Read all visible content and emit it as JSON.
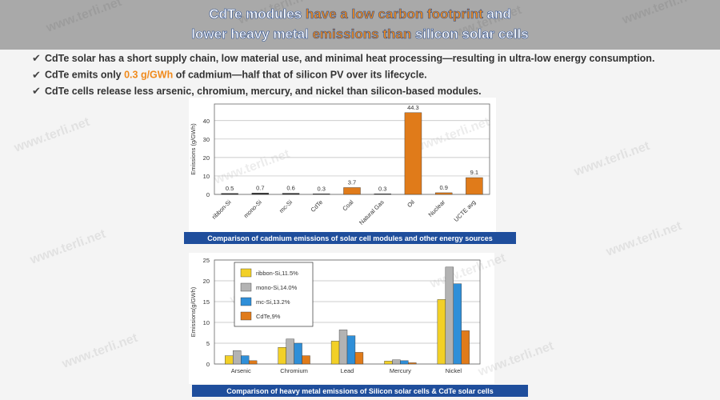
{
  "header": {
    "title_lines": [
      [
        {
          "text": "CdTe modules ",
          "highlight": false
        },
        {
          "text": "have a low carbon footprint",
          "highlight": true
        },
        {
          "text": " and",
          "highlight": false
        }
      ],
      [
        {
          "text": "lower heavy metal ",
          "highlight": false
        },
        {
          "text": "emissions than",
          "highlight": true
        },
        {
          "text": " silicon solar cells",
          "highlight": false
        }
      ]
    ]
  },
  "bullets": [
    [
      {
        "text": "CdTe solar has a short supply chain, low material use, and minimal heat processing—resulting in ultra-low energy consumption.",
        "highlight": false
      }
    ],
    [
      {
        "text": "CdTe emits only ",
        "highlight": false
      },
      {
        "text": "0.3 g/GWh",
        "highlight": true
      },
      {
        "text": " of cadmium—half that of silicon PV over its lifecycle.",
        "highlight": false
      }
    ],
    [
      {
        "text": "CdTe cells release less arsenic, chromium, mercury, and nickel than silicon-based modules.",
        "highlight": false
      }
    ]
  ],
  "watermark": "www.terli.net",
  "chart_data": [
    {
      "type": "bar",
      "caption": "Comparison of cadmium emissions of solar cell modules and other energy sources",
      "y_label": "Emissions (g/GWh)",
      "categories": [
        "ribbon-Si",
        "mono-Si",
        "mc-Si",
        "CdTe",
        "Coal",
        "Natural Gas",
        "Oil",
        "Nuclear",
        "UCTE avg"
      ],
      "values": [
        0.5,
        0.7,
        0.6,
        0.3,
        3.7,
        0.3,
        44.3,
        0.9,
        9.1
      ],
      "colors": [
        "#222222",
        "#222222",
        "#222222",
        "#222222",
        "#e07b1a",
        "#222222",
        "#e07b1a",
        "#e07b1a",
        "#e07b1a"
      ],
      "ylim": [
        0,
        49
      ],
      "yticks": [
        0,
        10,
        20,
        30,
        40
      ],
      "grid": true
    },
    {
      "type": "grouped_bar",
      "caption": "Comparison of heavy metal emissions of Silicon solar cells & CdTe solar cells",
      "y_label": "Emissions(g/GWh)",
      "categories": [
        "Arsenic",
        "Chromium",
        "Lead",
        "Mercury",
        "Nickel"
      ],
      "series": [
        {
          "name": "ribbon-Si,11.5%",
          "color": "#f2d027",
          "values": [
            2.0,
            4.0,
            5.5,
            0.7,
            15.5
          ]
        },
        {
          "name": "mono-Si,14.0%",
          "color": "#b3b3b3",
          "values": [
            3.2,
            6.0,
            8.2,
            1.0,
            23.3
          ]
        },
        {
          "name": "mc-Si,13.2%",
          "color": "#2f8fd8",
          "values": [
            2.0,
            5.0,
            6.8,
            0.8,
            19.3
          ]
        },
        {
          "name": "CdTe,9%",
          "color": "#e07b1a",
          "values": [
            0.8,
            2.0,
            2.8,
            0.3,
            8.0
          ]
        }
      ],
      "ylim": [
        0,
        25
      ],
      "yticks": [
        0,
        5,
        10,
        15,
        20,
        25
      ],
      "grid": true,
      "legend": "top-left"
    }
  ]
}
